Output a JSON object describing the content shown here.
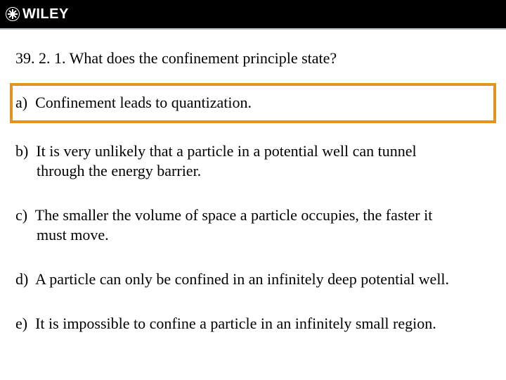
{
  "header": {
    "brand": "WILEY"
  },
  "question": {
    "number": "39. 2. 1.",
    "text": "What does the confinement principle state?"
  },
  "options": {
    "a": {
      "label": "a)",
      "text": "Confinement leads to quantization.",
      "highlighted": true
    },
    "b": {
      "label": "b)",
      "line1": "It is very unlikely that a particle in a potential well can tunnel",
      "line2": "through the energy barrier."
    },
    "c": {
      "label": "c)",
      "line1": "The smaller the volume of space a particle occupies, the faster it",
      "line2": "must move."
    },
    "d": {
      "label": "d)",
      "text": "A particle can only be confined in an infinitely deep potential well."
    },
    "e": {
      "label": "e)",
      "text": "It is impossible to confine a particle in an infinitely small region."
    }
  },
  "colors": {
    "header_bg": "#000000",
    "highlight_border": "#e2941e",
    "text": "#000000",
    "divider": "#aab0b8"
  }
}
